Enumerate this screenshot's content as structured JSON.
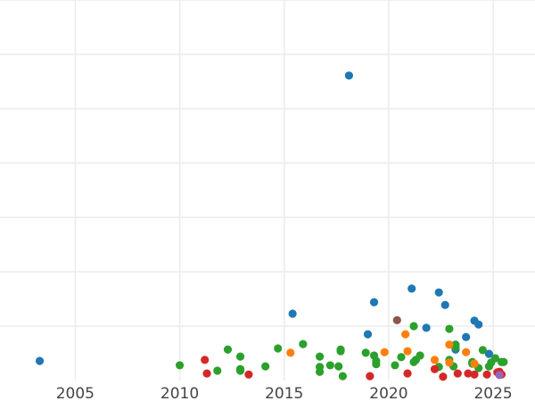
{
  "chart_data": {
    "type": "scatter",
    "title": "",
    "xlabel": "",
    "ylabel": "",
    "xlim": [
      2001.4,
      2027.0
    ],
    "ylim": [
      0,
      7
    ],
    "x_ticks": [
      "2005",
      "2010",
      "2015",
      "2020",
      "2025"
    ],
    "x_tick_values": [
      2005,
      2010,
      2015,
      2020,
      2025
    ],
    "y_tick_labels_shown": false,
    "grid": true,
    "legend": "none",
    "series": [
      {
        "color": "#1f77b4",
        "points": [
          [
            2003.3,
            0.36
          ],
          [
            2018.1,
            5.61
          ],
          [
            2015.4,
            1.23
          ],
          [
            2019.3,
            1.44
          ],
          [
            2021.1,
            1.69
          ],
          [
            2022.4,
            1.62
          ],
          [
            2022.7,
            1.39
          ],
          [
            2021.8,
            0.97
          ],
          [
            2019.0,
            0.85
          ],
          [
            2024.1,
            1.1
          ],
          [
            2024.3,
            1.03
          ],
          [
            2023.7,
            0.8
          ],
          [
            2023.2,
            0.57
          ],
          [
            2024.8,
            0.49
          ]
        ]
      },
      {
        "color": "#2ca02c",
        "points": [
          [
            2010.0,
            0.28
          ],
          [
            2011.8,
            0.18
          ],
          [
            2012.3,
            0.57
          ],
          [
            2012.9,
            0.44
          ],
          [
            2012.9,
            0.21
          ],
          [
            2012.9,
            0.18
          ],
          [
            2014.1,
            0.26
          ],
          [
            2014.7,
            0.59
          ],
          [
            2015.9,
            0.67
          ],
          [
            2016.7,
            0.44
          ],
          [
            2016.7,
            0.25
          ],
          [
            2016.7,
            0.16
          ],
          [
            2017.2,
            0.28
          ],
          [
            2017.6,
            0.26
          ],
          [
            2017.7,
            0.57
          ],
          [
            2017.7,
            0.54
          ],
          [
            2017.8,
            0.08
          ],
          [
            2018.9,
            0.51
          ],
          [
            2019.3,
            0.46
          ],
          [
            2019.4,
            0.36
          ],
          [
            2019.4,
            0.3
          ],
          [
            2020.3,
            0.28
          ],
          [
            2020.6,
            0.43
          ],
          [
            2021.2,
            1.0
          ],
          [
            2021.2,
            0.34
          ],
          [
            2021.3,
            0.38
          ],
          [
            2021.5,
            0.46
          ],
          [
            2022.4,
            0.25
          ],
          [
            2022.9,
            0.38
          ],
          [
            2022.9,
            0.95
          ],
          [
            2023.2,
            0.61
          ],
          [
            2023.2,
            0.66
          ],
          [
            2023.1,
            0.26
          ],
          [
            2024.0,
            0.34
          ],
          [
            2024.0,
            0.31
          ],
          [
            2024.3,
            0.23
          ],
          [
            2024.5,
            0.56
          ],
          [
            2024.9,
            0.33
          ],
          [
            2024.8,
            0.26
          ],
          [
            2025.1,
            0.41
          ],
          [
            2025.5,
            0.34
          ],
          [
            2025.4,
            0.34
          ]
        ]
      },
      {
        "color": "#ff7f0e",
        "points": [
          [
            2015.3,
            0.51
          ],
          [
            2019.8,
            0.52
          ],
          [
            2020.8,
            0.85
          ],
          [
            2020.9,
            0.54
          ],
          [
            2022.2,
            0.38
          ],
          [
            2022.9,
            0.66
          ],
          [
            2022.9,
            0.33
          ],
          [
            2023.7,
            0.52
          ],
          [
            2024.1,
            0.31
          ]
        ]
      },
      {
        "color": "#d62728",
        "points": [
          [
            2011.2,
            0.38
          ],
          [
            2011.3,
            0.13
          ],
          [
            2013.3,
            0.11
          ],
          [
            2019.1,
            0.08
          ],
          [
            2020.9,
            0.13
          ],
          [
            2022.2,
            0.21
          ],
          [
            2022.6,
            0.07
          ],
          [
            2023.3,
            0.13
          ],
          [
            2023.8,
            0.13
          ],
          [
            2024.1,
            0.11
          ],
          [
            2024.7,
            0.11
          ],
          [
            2025.2,
            0.15
          ],
          [
            2025.3,
            0.16
          ],
          [
            2025.4,
            0.11
          ]
        ]
      },
      {
        "color": "#8c564b",
        "points": [
          [
            2020.4,
            1.11
          ]
        ]
      },
      {
        "color": "#9467bd",
        "points": [
          [
            2025.3,
            0.1
          ]
        ]
      }
    ]
  }
}
